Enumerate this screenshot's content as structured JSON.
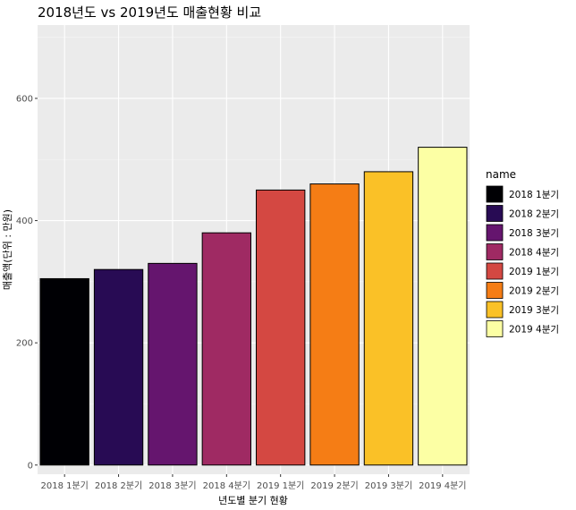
{
  "chart_data": {
    "type": "bar",
    "title": "2018년도 vs 2019년도 매출현황 비교",
    "xlabel": "년도별 분기 현황",
    "ylabel": "매출액(단위 : 만원)",
    "categories": [
      "2018 1분기",
      "2018 2분기",
      "2018 3분기",
      "2018 4분기",
      "2019 1분기",
      "2019 2분기",
      "2019 3분기",
      "2019 4분기"
    ],
    "values": [
      305,
      320,
      330,
      380,
      450,
      460,
      480,
      520
    ],
    "colors": [
      "#000004",
      "#280B54",
      "#65156E",
      "#9F2A63",
      "#D44842",
      "#F57D15",
      "#FAC127",
      "#FCFFA4"
    ],
    "ylim": [
      -15,
      720
    ],
    "yticks": [
      0,
      200,
      400,
      600
    ],
    "legend": {
      "title": "name",
      "position": "right",
      "entries": [
        "2018 1분기",
        "2018 2분기",
        "2018 3분기",
        "2018 4분기",
        "2019 1분기",
        "2019 2분기",
        "2019 3분기",
        "2019 4분기"
      ]
    },
    "grid": true
  }
}
